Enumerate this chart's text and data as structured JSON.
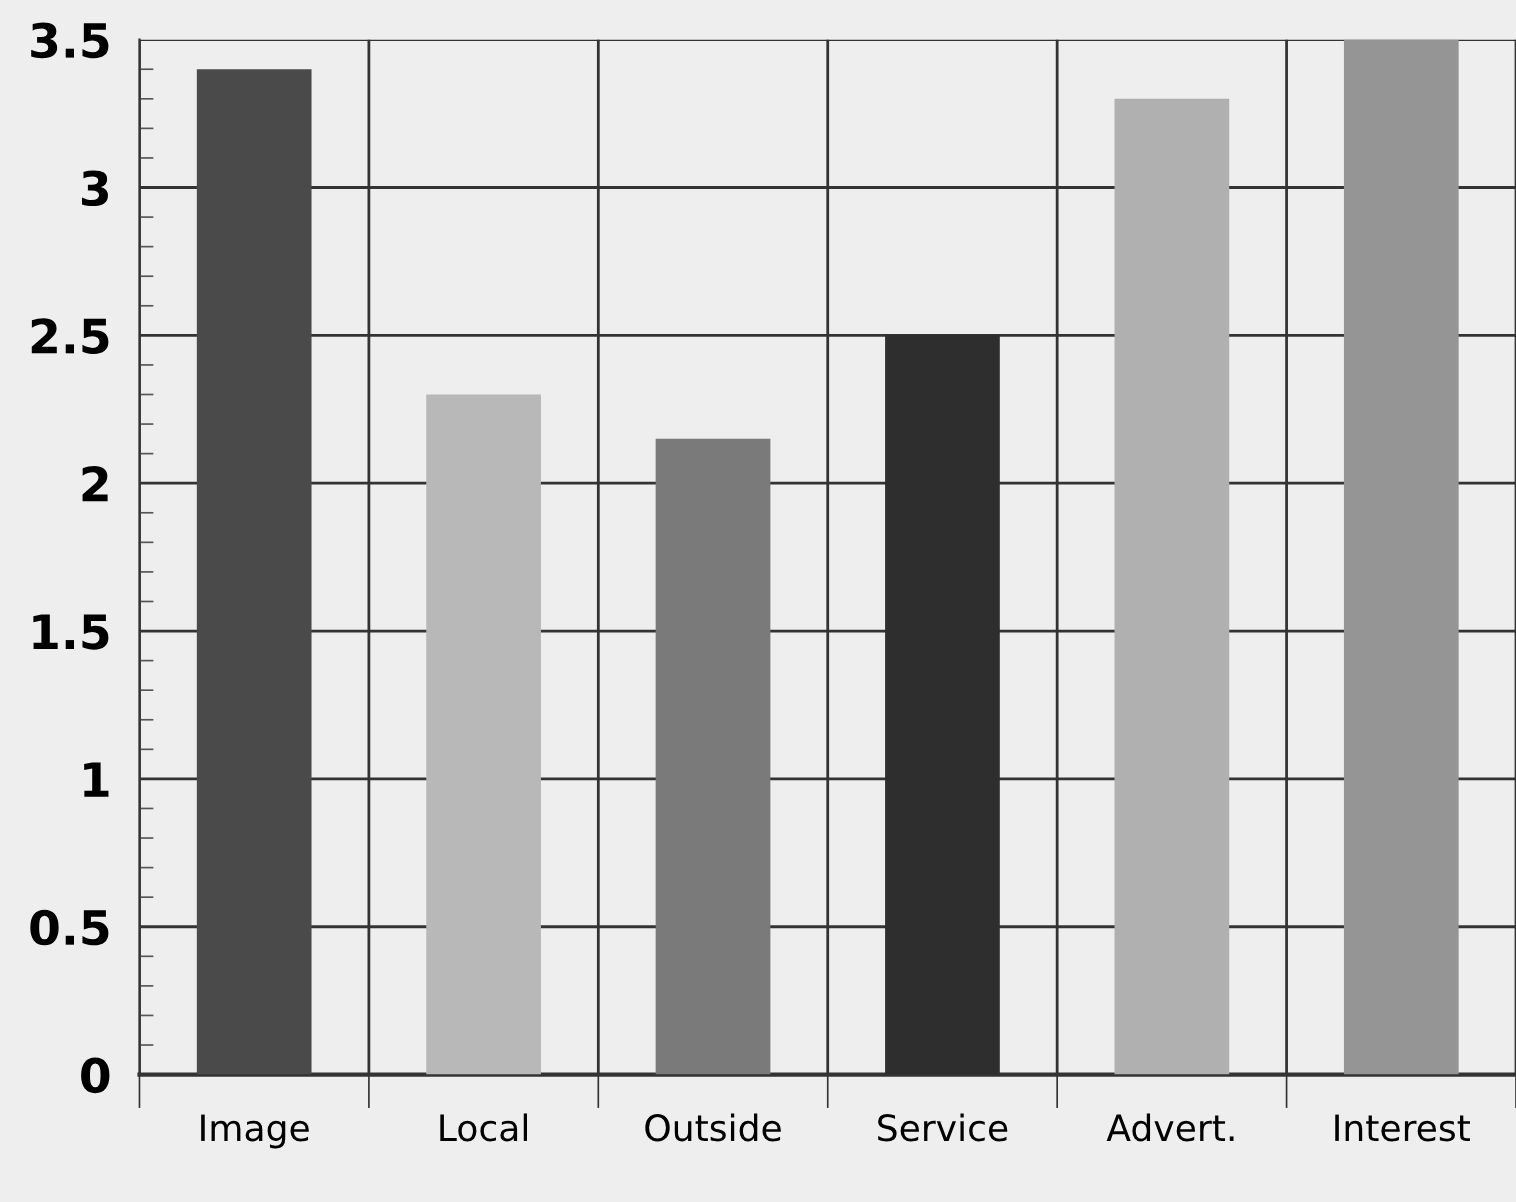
{
  "chart_data": {
    "type": "bar",
    "categories": [
      "Image",
      "Local",
      "Outside",
      "Service",
      "Advert.",
      "Interest"
    ],
    "values": [
      3.4,
      2.3,
      2.15,
      2.5,
      3.3,
      3.5
    ],
    "colors": [
      "#4a4a4a",
      "#b8b8b8",
      "#7a7a7a",
      "#2e2e2e",
      "#b0b0b0",
      "#959595"
    ],
    "ylim": [
      0,
      3.5
    ],
    "yticks": [
      0,
      0.5,
      1,
      1.5,
      2,
      2.5,
      3,
      3.5
    ],
    "grid": true
  }
}
